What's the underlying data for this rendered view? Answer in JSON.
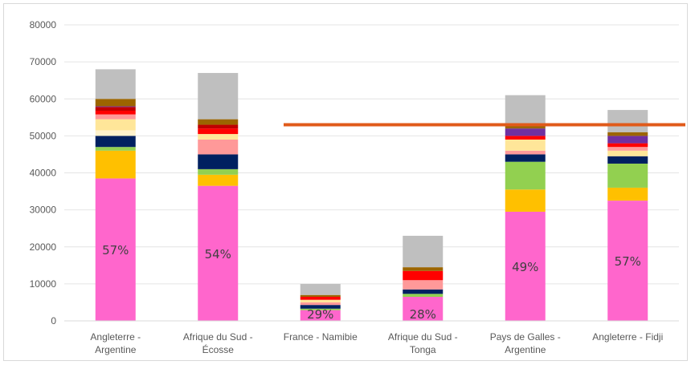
{
  "chart_data": {
    "type": "bar",
    "stacked": true,
    "title": "",
    "xlabel": "",
    "ylabel": "",
    "ylim": [
      0,
      80000
    ],
    "y_ticks": [
      "0",
      "10000",
      "20000",
      "30000",
      "40000",
      "50000",
      "60000",
      "70000",
      "80000"
    ],
    "grid": true,
    "legend": "none",
    "categories": [
      [
        "Angleterre -",
        "Argentine"
      ],
      [
        "Afrique du Sud -",
        "Écosse"
      ],
      [
        "France - Namibie"
      ],
      [
        "Afrique du Sud -",
        "Tonga"
      ],
      [
        "Pays de Galles -",
        "Argentine"
      ],
      [
        "Angleterre - Fidji"
      ]
    ],
    "bars": [
      {
        "label": "57%",
        "segments": [
          {
            "value": 38500,
            "color": "#ff66cc"
          },
          {
            "value": 7500,
            "color": "#ffc000"
          },
          {
            "value": 1000,
            "color": "#92d050"
          },
          {
            "value": 3000,
            "color": "#002060"
          },
          {
            "value": 1500,
            "color": "#fff2cc"
          },
          {
            "value": 3000,
            "color": "#ffe699"
          },
          {
            "value": 1300,
            "color": "#ff9999"
          },
          {
            "value": 1000,
            "color": "#ff0000"
          },
          {
            "value": 1000,
            "color": "#c00000"
          },
          {
            "value": 200,
            "color": "#7030a0"
          },
          {
            "value": 2000,
            "color": "#9c6500"
          },
          {
            "value": 8000,
            "color": "#bfbfbf"
          }
        ]
      },
      {
        "label": "54%",
        "segments": [
          {
            "value": 36500,
            "color": "#ff66cc"
          },
          {
            "value": 3000,
            "color": "#ffc000"
          },
          {
            "value": 1500,
            "color": "#92d050"
          },
          {
            "value": 4000,
            "color": "#002060"
          },
          {
            "value": 4000,
            "color": "#ff9999"
          },
          {
            "value": 1500,
            "color": "#ffe699"
          },
          {
            "value": 1500,
            "color": "#ff0000"
          },
          {
            "value": 1000,
            "color": "#c00000"
          },
          {
            "value": 1500,
            "color": "#9c6500"
          },
          {
            "value": 12500,
            "color": "#bfbfbf"
          }
        ]
      },
      {
        "label": "29%",
        "segments": [
          {
            "value": 2900,
            "color": "#ff66cc"
          },
          {
            "value": 400,
            "color": "#92d050"
          },
          {
            "value": 1000,
            "color": "#002060"
          },
          {
            "value": 700,
            "color": "#ff9999"
          },
          {
            "value": 700,
            "color": "#ffe699"
          },
          {
            "value": 800,
            "color": "#ff0000"
          },
          {
            "value": 500,
            "color": "#9c6500"
          },
          {
            "value": 3000,
            "color": "#bfbfbf"
          }
        ]
      },
      {
        "label": "28%",
        "segments": [
          {
            "value": 6500,
            "color": "#ff66cc"
          },
          {
            "value": 800,
            "color": "#92d050"
          },
          {
            "value": 1200,
            "color": "#002060"
          },
          {
            "value": 2500,
            "color": "#ff9999"
          },
          {
            "value": 2500,
            "color": "#ff0000"
          },
          {
            "value": 1000,
            "color": "#9c6500"
          },
          {
            "value": 8500,
            "color": "#bfbfbf"
          }
        ]
      },
      {
        "label": "49%",
        "segments": [
          {
            "value": 29500,
            "color": "#ff66cc"
          },
          {
            "value": 6000,
            "color": "#ffc000"
          },
          {
            "value": 7500,
            "color": "#92d050"
          },
          {
            "value": 2000,
            "color": "#002060"
          },
          {
            "value": 1000,
            "color": "#ff9999"
          },
          {
            "value": 3000,
            "color": "#ffe699"
          },
          {
            "value": 1000,
            "color": "#ff0000"
          },
          {
            "value": 2000,
            "color": "#7030a0"
          },
          {
            "value": 1000,
            "color": "#9c6500"
          },
          {
            "value": 8000,
            "color": "#bfbfbf"
          }
        ]
      },
      {
        "label": "57%",
        "segments": [
          {
            "value": 32500,
            "color": "#ff66cc"
          },
          {
            "value": 3500,
            "color": "#ffc000"
          },
          {
            "value": 6500,
            "color": "#92d050"
          },
          {
            "value": 2000,
            "color": "#002060"
          },
          {
            "value": 1500,
            "color": "#ffe699"
          },
          {
            "value": 1000,
            "color": "#ff9999"
          },
          {
            "value": 1000,
            "color": "#ff0000"
          },
          {
            "value": 2000,
            "color": "#7030a0"
          },
          {
            "value": 1000,
            "color": "#9c6500"
          },
          {
            "value": 6000,
            "color": "#bfbfbf"
          }
        ]
      }
    ],
    "reference_line": {
      "value": 53000,
      "color": "#e05a1a"
    }
  }
}
